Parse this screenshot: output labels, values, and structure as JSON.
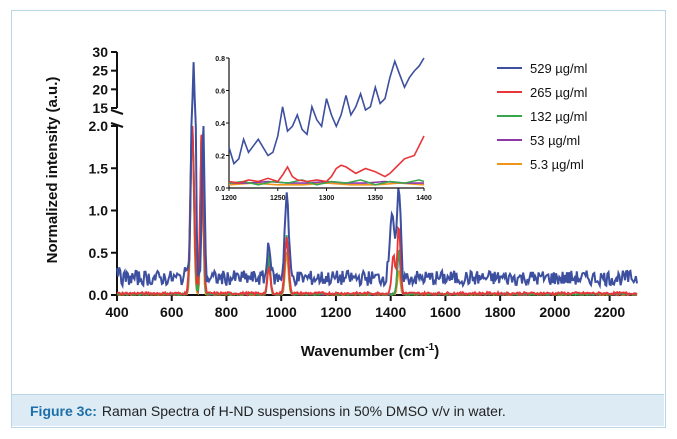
{
  "chart_data": {
    "type": "line",
    "title": "",
    "xlabel": "Wavenumber (cm",
    "xlabel_sup": "-1",
    "xlabel_end": ")",
    "ylabel": "Normalized intensity (a.u.)",
    "x_ticks": [
      "400",
      "600",
      "800",
      "1000",
      "1200",
      "1400",
      "1600",
      "1800",
      "2000",
      "2200"
    ],
    "y_ticks_lower": [
      "0.0",
      "0.5",
      "1.0",
      "1.5",
      "2.0"
    ],
    "y_ticks_upper": [
      "15",
      "20",
      "25",
      "30"
    ],
    "xlim": [
      400,
      2300
    ],
    "ylim_lower": [
      0,
      2.0
    ],
    "ylim_upper": [
      15,
      30
    ],
    "legend_placement": "top-right",
    "series": [
      {
        "name": "529 µg/ml",
        "color": "#3d4f9f",
        "peaks": [
          [
            665,
            0.28,
            12
          ],
          [
            680,
            27,
            6
          ],
          [
            715,
            2.0,
            6
          ],
          [
            955,
            0.45,
            8
          ],
          [
            1020,
            1.0,
            10
          ],
          [
            1405,
            0.8,
            12
          ],
          [
            1430,
            1.05,
            9
          ]
        ],
        "baseline": 0.2,
        "noise": 0.09
      },
      {
        "name": "265 µg/ml",
        "color": "#e8363a",
        "peaks": [
          [
            675,
            2.0,
            10
          ],
          [
            710,
            2.0,
            8
          ],
          [
            955,
            0.3,
            8
          ],
          [
            1020,
            0.65,
            10
          ],
          [
            1410,
            0.45,
            9
          ],
          [
            1430,
            0.8,
            8
          ]
        ],
        "baseline": 0.02,
        "noise": 0.015
      },
      {
        "name": "132 µg/ml",
        "color": "#3aa64b",
        "peaks": [
          [
            675,
            2.0,
            9
          ],
          [
            710,
            2.0,
            7
          ],
          [
            955,
            0.5,
            7
          ],
          [
            1020,
            0.7,
            9
          ],
          [
            1430,
            0.55,
            8
          ]
        ],
        "baseline": 0.01,
        "noise": 0.01
      },
      {
        "name": "53 µg/ml",
        "color": "#8d3aa8",
        "peaks": [
          [
            675,
            2.0,
            9
          ],
          [
            710,
            2.0,
            7
          ],
          [
            955,
            0.4,
            7
          ],
          [
            1020,
            0.65,
            9
          ],
          [
            1430,
            0.5,
            8
          ]
        ],
        "baseline": 0.01,
        "noise": 0.008
      },
      {
        "name": "5.3 µg/ml",
        "color": "#f0951c",
        "peaks": [
          [
            675,
            2.0,
            8
          ],
          [
            710,
            2.0,
            6
          ],
          [
            955,
            0.35,
            7
          ],
          [
            1020,
            0.5,
            8
          ],
          [
            1430,
            0.3,
            7
          ]
        ],
        "baseline": 0.005,
        "noise": 0.005
      }
    ],
    "inset": {
      "xlim": [
        1200,
        1400
      ],
      "ylim": [
        0,
        0.8
      ],
      "x_ticks": [
        "1200",
        "1250",
        "1300",
        "1350",
        "1400"
      ],
      "y_ticks": [
        "0.0",
        "0.2",
        "0.4",
        "0.6",
        "0.8"
      ],
      "series": [
        {
          "color": "#3d4f9f",
          "x": [
            1200,
            1205,
            1210,
            1215,
            1220,
            1225,
            1230,
            1235,
            1240,
            1245,
            1250,
            1255,
            1260,
            1265,
            1270,
            1275,
            1280,
            1285,
            1290,
            1295,
            1300,
            1305,
            1310,
            1315,
            1320,
            1325,
            1330,
            1335,
            1340,
            1345,
            1350,
            1355,
            1360,
            1365,
            1370,
            1375,
            1380,
            1385,
            1390,
            1395,
            1400
          ],
          "y": [
            0.25,
            0.15,
            0.18,
            0.3,
            0.22,
            0.26,
            0.3,
            0.25,
            0.2,
            0.22,
            0.32,
            0.5,
            0.35,
            0.38,
            0.45,
            0.36,
            0.33,
            0.5,
            0.42,
            0.38,
            0.55,
            0.45,
            0.38,
            0.45,
            0.57,
            0.45,
            0.5,
            0.58,
            0.48,
            0.5,
            0.62,
            0.52,
            0.55,
            0.68,
            0.78,
            0.7,
            0.62,
            0.68,
            0.72,
            0.75,
            0.8
          ]
        },
        {
          "color": "#e8363a",
          "x": [
            1200,
            1210,
            1220,
            1230,
            1240,
            1250,
            1255,
            1260,
            1265,
            1270,
            1280,
            1290,
            1300,
            1305,
            1310,
            1315,
            1320,
            1330,
            1340,
            1350,
            1360,
            1365,
            1370,
            1380,
            1390,
            1395,
            1400
          ],
          "y": [
            0.04,
            0.03,
            0.05,
            0.04,
            0.06,
            0.04,
            0.08,
            0.13,
            0.07,
            0.05,
            0.04,
            0.05,
            0.04,
            0.07,
            0.12,
            0.14,
            0.13,
            0.09,
            0.12,
            0.1,
            0.07,
            0.09,
            0.12,
            0.18,
            0.2,
            0.26,
            0.32
          ]
        },
        {
          "color": "#3aa64b",
          "x": [
            1200,
            1215,
            1230,
            1245,
            1260,
            1275,
            1290,
            1305,
            1320,
            1335,
            1350,
            1365,
            1380,
            1395,
            1400
          ],
          "y": [
            0.03,
            0.04,
            0.02,
            0.04,
            0.03,
            0.05,
            0.02,
            0.04,
            0.03,
            0.05,
            0.02,
            0.04,
            0.03,
            0.05,
            0.04
          ]
        },
        {
          "color": "#8d3aa8",
          "x": [
            1200,
            1220,
            1240,
            1260,
            1280,
            1300,
            1320,
            1340,
            1360,
            1380,
            1400
          ],
          "y": [
            0.03,
            0.03,
            0.04,
            0.03,
            0.03,
            0.04,
            0.03,
            0.03,
            0.04,
            0.03,
            0.03
          ]
        },
        {
          "color": "#f0951c",
          "x": [
            1200,
            1225,
            1250,
            1275,
            1300,
            1325,
            1350,
            1375,
            1400
          ],
          "y": [
            0.02,
            0.03,
            0.02,
            0.02,
            0.03,
            0.02,
            0.02,
            0.03,
            0.02
          ]
        }
      ]
    }
  },
  "caption": {
    "lead": "Figure 3c:",
    "text": "Raman Spectra of H-ND suspensions in 50% DMSO v/v in water."
  }
}
